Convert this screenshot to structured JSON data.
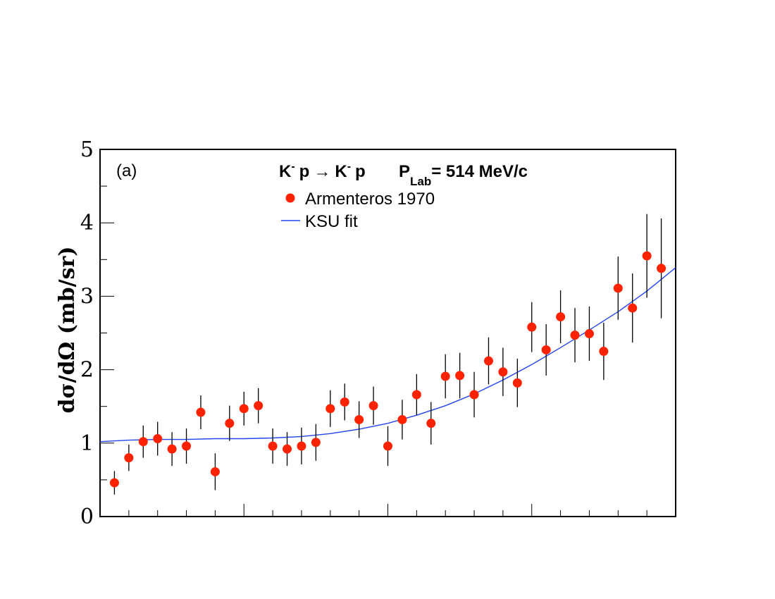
{
  "chart_data": {
    "type": "scatter",
    "panel_label": "(a)",
    "title": {
      "reaction": {
        "k1": "K",
        "k1_sup": "-",
        "p1": "p",
        "arrow": "→",
        "k2": "K",
        "k2_sup": "-",
        "p2": "p"
      },
      "momentum": {
        "p": "P",
        "sub": "Lab",
        "value": "= 514 MeV/c"
      }
    },
    "ylabel": "dσ/dΩ (mb/sr)",
    "xlabel": "",
    "ylim": [
      0,
      5
    ],
    "xlim": [
      -1,
      1
    ],
    "y_ticks": [
      {
        "value": 0,
        "label": "0"
      },
      {
        "value": 1,
        "label": "1"
      },
      {
        "value": 2,
        "label": "2"
      },
      {
        "value": 3,
        "label": "3"
      },
      {
        "value": 4,
        "label": "4"
      },
      {
        "value": 5,
        "label": "5"
      }
    ],
    "x_major_ticks": [
      -1,
      -0.5,
      0,
      0.5,
      1
    ],
    "x_minor_step": 0.1,
    "grid": false,
    "legend_position": "top-center",
    "series": [
      {
        "name": "Armenteros 1970",
        "kind": "points",
        "color": "#ff2200",
        "x": [
          -0.95,
          -0.9,
          -0.85,
          -0.8,
          -0.75,
          -0.7,
          -0.65,
          -0.6,
          -0.55,
          -0.5,
          -0.45,
          -0.4,
          -0.35,
          -0.3,
          -0.25,
          -0.2,
          -0.15,
          -0.1,
          -0.05,
          0.0,
          0.05,
          0.1,
          0.15,
          0.2,
          0.25,
          0.3,
          0.35,
          0.4,
          0.45,
          0.5,
          0.55,
          0.6,
          0.65,
          0.7,
          0.75,
          0.8,
          0.85,
          0.9,
          0.95
        ],
        "y": [
          0.46,
          0.8,
          1.02,
          1.06,
          0.92,
          0.96,
          1.42,
          0.61,
          1.27,
          1.47,
          1.51,
          0.96,
          0.92,
          0.96,
          1.01,
          1.47,
          1.56,
          1.32,
          1.51,
          0.96,
          1.32,
          1.66,
          1.27,
          1.91,
          1.92,
          1.66,
          2.12,
          1.97,
          1.82,
          2.58,
          2.27,
          2.72,
          2.47,
          2.49,
          2.25,
          3.11,
          2.84,
          3.55,
          3.38
        ],
        "yerr": [
          0.16,
          0.18,
          0.22,
          0.23,
          0.23,
          0.24,
          0.23,
          0.25,
          0.24,
          0.23,
          0.24,
          0.24,
          0.23,
          0.25,
          0.25,
          0.25,
          0.25,
          0.25,
          0.26,
          0.27,
          0.27,
          0.28,
          0.29,
          0.3,
          0.31,
          0.31,
          0.32,
          0.33,
          0.33,
          0.34,
          0.35,
          0.36,
          0.37,
          0.37,
          0.39,
          0.43,
          0.47,
          0.57,
          0.68
        ]
      },
      {
        "name": "KSU fit",
        "kind": "line",
        "color": "#2244ee",
        "x": [
          -1.0,
          -0.9,
          -0.8,
          -0.7,
          -0.6,
          -0.5,
          -0.4,
          -0.3,
          -0.2,
          -0.1,
          0.0,
          0.1,
          0.2,
          0.3,
          0.4,
          0.5,
          0.6,
          0.7,
          0.8,
          0.9,
          1.0
        ],
        "y": [
          1.02,
          1.04,
          1.05,
          1.05,
          1.06,
          1.06,
          1.07,
          1.09,
          1.13,
          1.19,
          1.27,
          1.38,
          1.51,
          1.67,
          1.86,
          2.07,
          2.3,
          2.54,
          2.79,
          3.07,
          3.39
        ]
      }
    ]
  }
}
